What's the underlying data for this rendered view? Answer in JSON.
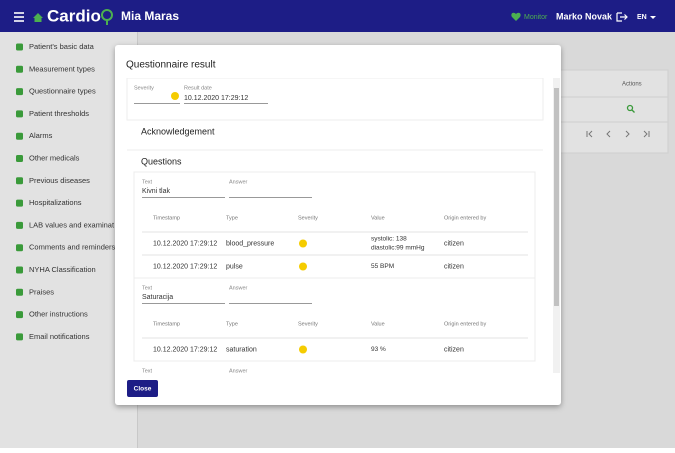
{
  "header": {
    "app": "Cardio",
    "patient": "Mia Maras",
    "role": "Monitor",
    "user": "Marko Novak",
    "language": "EN"
  },
  "sidebar": {
    "items": [
      "Patient's basic data",
      "Measurement types",
      "Questionnaire types",
      "Patient thresholds",
      "Alarms",
      "Other medicals",
      "Previous diseases",
      "Hospitalizations",
      "LAB values and examinat",
      "Comments and reminders",
      "NYHA Classification",
      "Praises",
      "Other instructions",
      "Email notifications"
    ]
  },
  "background_table": {
    "actions_header": "Actions"
  },
  "dialog": {
    "title": "Questionnaire result",
    "severity_label": "Severity",
    "result_date_label": "Result date",
    "result_date": "10.12.2020 17:29:12",
    "acknowledgement": "Acknowledgement",
    "questions_heading": "Questions",
    "questions": [
      {
        "text_label": "Text",
        "text": "Kivni tlak",
        "answer_label": "Answer",
        "columns": [
          "Timestamp",
          "Type",
          "Severity",
          "Value",
          "Origin entered by"
        ],
        "rows": [
          {
            "timestamp": "10.12.2020 17:29:12",
            "type": "blood_pressure",
            "value": [
              "systolic: 138",
              "diastolic:99 mmHg"
            ],
            "origin": "citizen"
          },
          {
            "timestamp": "10.12.2020 17:29:12",
            "type": "pulse",
            "value": [
              "55 BPM"
            ],
            "origin": "citizen"
          }
        ]
      },
      {
        "text_label": "Text",
        "text": "Saturacija",
        "answer_label": "Answer",
        "columns": [
          "Timestamp",
          "Type",
          "Severity",
          "Value",
          "Origin entered by"
        ],
        "rows": [
          {
            "timestamp": "10.12.2020 17:29:12",
            "type": "saturation",
            "value": [
              "93 %"
            ],
            "origin": "citizen"
          }
        ]
      },
      {
        "text_label": "Text",
        "answer_label": "Answer"
      }
    ],
    "close": "Close"
  }
}
